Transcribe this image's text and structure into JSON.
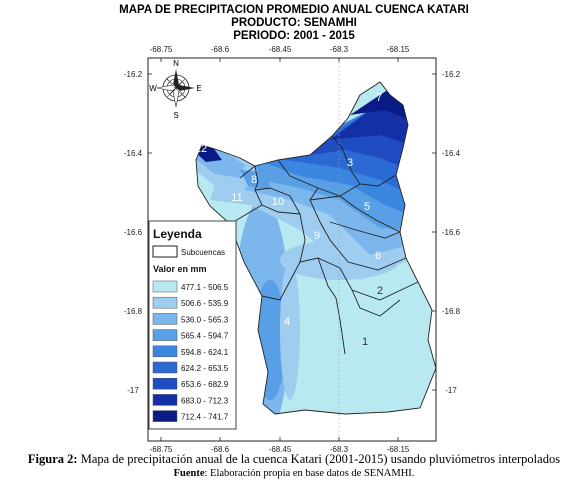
{
  "title": {
    "line1": "MAPA DE PRECIPITACION PROMEDIO ANUAL CUENCA KATARI",
    "line2": "PRODUCTO: SENAMHI",
    "line3": "PERIODO: 2001 - 2015"
  },
  "axes": {
    "longitudes_top": [
      "-68.75",
      "-68.6",
      "-68.45",
      "-68.3",
      "-68.15"
    ],
    "longitudes_bottom": [
      "-68.75",
      "-68.6",
      "-68.45",
      "-68.3",
      "-68.15"
    ],
    "latitudes_left": [
      "-16.2",
      "-16.4",
      "-16.6",
      "-16.8",
      "-17"
    ],
    "latitudes_right": [
      "-16.2",
      "-16.4",
      "-16.6",
      "-16.8",
      "-17"
    ]
  },
  "compass": {
    "n": "N",
    "s": "S",
    "e": "E",
    "w": "W"
  },
  "subbasins": [
    "1",
    "2",
    "3",
    "4",
    "5",
    "6",
    "7",
    "8",
    "9",
    "10",
    "11",
    "12"
  ],
  "legend": {
    "title": "Leyenda",
    "subbasin_label": "Subcuencas",
    "value_title": "Valor en mm",
    "classes": [
      {
        "label": "477.1 - 506.5",
        "color": "#b9e9f0"
      },
      {
        "label": "506.6 - 535.9",
        "color": "#9fcdef"
      },
      {
        "label": "536.0 - 565.3",
        "color": "#7bb6ec"
      },
      {
        "label": "565.4 - 594.7",
        "color": "#599fe6"
      },
      {
        "label": "594.8 - 624.1",
        "color": "#3b86df"
      },
      {
        "label": "624.2 - 653.5",
        "color": "#2c6ad3"
      },
      {
        "label": "653.6 - 682.9",
        "color": "#1f4dc1"
      },
      {
        "label": "683.0 - 712.3",
        "color": "#1330a6"
      },
      {
        "label": "712.4 - 741.7",
        "color": "#0a1a86"
      }
    ]
  },
  "caption": {
    "figure_label": "Figura 2:",
    "figure_text": " Mapa de precipitación anual de la cuenca Katari (2001-2015) usando pluviómetros interpolados",
    "source_label": "Fuente",
    "source_text": ": Elaboración propia en base datos de SENAMHI."
  }
}
